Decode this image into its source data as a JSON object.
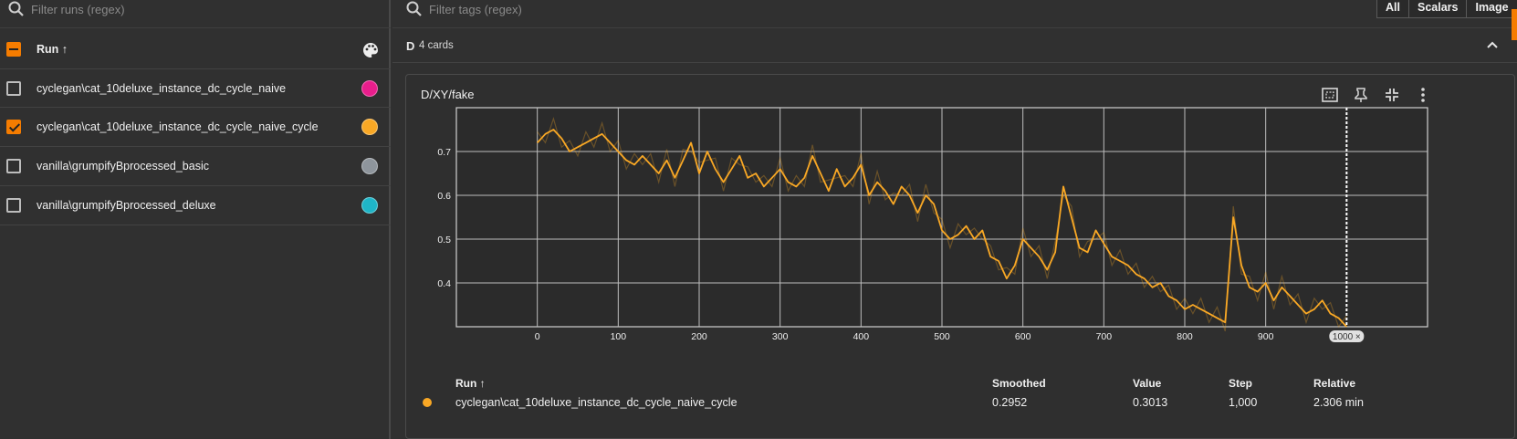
{
  "runs_panel": {
    "filter_placeholder": "Filter runs (regex)",
    "header_label": "Run ↑",
    "runs": [
      {
        "name": "cyclegan\\cat_10deluxe_instance_dc_cycle_naive",
        "checked": false,
        "color": "#e91e8c"
      },
      {
        "name": "cyclegan\\cat_10deluxe_instance_dc_cycle_naive_cycle",
        "checked": true,
        "color": "#f9a825"
      },
      {
        "name": "vanilla\\grumpifyBprocessed_basic",
        "checked": false,
        "color": "#8e959c"
      },
      {
        "name": "vanilla\\grumpifyBprocessed_deluxe",
        "checked": false,
        "color": "#1fb5c7"
      }
    ]
  },
  "main": {
    "tags_filter_placeholder": "Filter tags (regex)",
    "type_tabs": [
      "All",
      "Scalars",
      "Image"
    ],
    "group": {
      "name": "D",
      "count": "4 cards"
    },
    "card": {
      "title": "D/XY/fake",
      "step_chip": "1000 ×",
      "table": {
        "headers": {
          "run": "Run ↑",
          "smoothed": "Smoothed",
          "value": "Value",
          "step": "Step",
          "relative": "Relative"
        },
        "row": {
          "run": "cyclegan\\cat_10deluxe_instance_dc_cycle_naive_cycle",
          "smoothed": "0.2952",
          "value": "0.3013",
          "step": "1,000",
          "relative": "2.306 min",
          "color": "#f9a825"
        }
      }
    }
  },
  "chart_data": {
    "type": "line",
    "xlim": [
      -100,
      1100
    ],
    "ylim": [
      0.3,
      0.8
    ],
    "x_ticks": [
      0,
      100,
      200,
      300,
      400,
      500,
      600,
      700,
      800,
      900
    ],
    "y_ticks": [
      0.4,
      0.5,
      0.6,
      0.7
    ],
    "x_tick_labels": [
      "0",
      "100",
      "200",
      "300",
      "400",
      "500",
      "600",
      "700",
      "800",
      "900"
    ],
    "y_tick_labels": [
      "0.4",
      "0.5",
      "0.6",
      "0.7"
    ],
    "grid": true,
    "series_color": "#f9a825",
    "series": [
      {
        "name": "cyclegan\\cat_10deluxe_instance_dc_cycle_naive_cycle",
        "x": [
          0,
          10,
          20,
          30,
          40,
          50,
          60,
          70,
          80,
          90,
          100,
          110,
          120,
          130,
          140,
          150,
          160,
          170,
          180,
          190,
          200,
          210,
          220,
          230,
          240,
          250,
          260,
          270,
          280,
          290,
          300,
          310,
          320,
          330,
          340,
          350,
          360,
          370,
          380,
          390,
          400,
          410,
          420,
          430,
          440,
          450,
          460,
          470,
          480,
          490,
          500,
          510,
          520,
          530,
          540,
          550,
          560,
          570,
          580,
          590,
          600,
          610,
          620,
          630,
          640,
          650,
          660,
          670,
          680,
          690,
          700,
          710,
          720,
          730,
          740,
          750,
          760,
          770,
          780,
          790,
          800,
          810,
          820,
          830,
          840,
          850,
          860,
          870,
          880,
          890,
          900,
          910,
          920,
          930,
          940,
          950,
          960,
          970,
          980,
          990,
          1000
        ],
        "values": [
          0.72,
          0.74,
          0.75,
          0.73,
          0.7,
          0.71,
          0.72,
          0.73,
          0.74,
          0.72,
          0.7,
          0.68,
          0.67,
          0.69,
          0.67,
          0.65,
          0.68,
          0.64,
          0.68,
          0.72,
          0.65,
          0.7,
          0.66,
          0.63,
          0.66,
          0.69,
          0.64,
          0.65,
          0.62,
          0.64,
          0.66,
          0.63,
          0.62,
          0.64,
          0.69,
          0.65,
          0.61,
          0.66,
          0.62,
          0.64,
          0.67,
          0.6,
          0.63,
          0.61,
          0.58,
          0.62,
          0.6,
          0.56,
          0.6,
          0.58,
          0.52,
          0.5,
          0.51,
          0.53,
          0.5,
          0.52,
          0.46,
          0.45,
          0.41,
          0.44,
          0.5,
          0.48,
          0.46,
          0.43,
          0.47,
          0.62,
          0.55,
          0.48,
          0.47,
          0.52,
          0.49,
          0.46,
          0.45,
          0.44,
          0.42,
          0.41,
          0.39,
          0.4,
          0.37,
          0.36,
          0.34,
          0.35,
          0.34,
          0.33,
          0.32,
          0.31,
          0.55,
          0.44,
          0.39,
          0.38,
          0.4,
          0.36,
          0.39,
          0.37,
          0.35,
          0.33,
          0.34,
          0.36,
          0.33,
          0.32,
          0.3
        ]
      }
    ]
  }
}
